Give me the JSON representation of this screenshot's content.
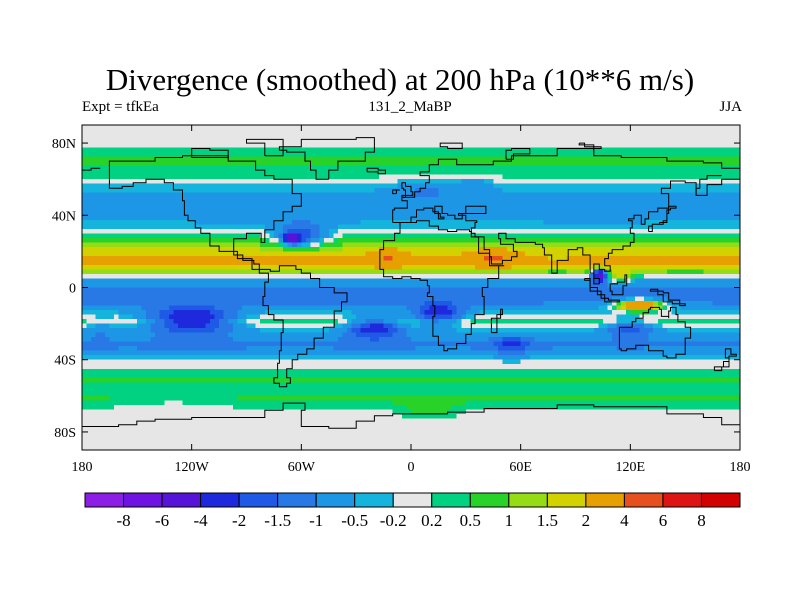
{
  "title": "Divergence (smoothed) at 200 hPa (10**6 m/s)",
  "subtitle_left": "Expt = tfkEa",
  "subtitle_center": "131_2_MaBP",
  "subtitle_right": "JJA",
  "chart_data": {
    "type": "heatmap",
    "projection": "cylindrical-equidistant",
    "x_range": [
      -180,
      180
    ],
    "y_range": [
      -90,
      90
    ],
    "x_ticks": [
      {
        "value": -180,
        "label": "180"
      },
      {
        "value": -120,
        "label": "120W"
      },
      {
        "value": -60,
        "label": "60W"
      },
      {
        "value": 0,
        "label": "0"
      },
      {
        "value": 60,
        "label": "60E"
      },
      {
        "value": 120,
        "label": "120E"
      },
      {
        "value": 180,
        "label": "180"
      }
    ],
    "y_ticks": [
      {
        "value": 80,
        "label": "80N"
      },
      {
        "value": 40,
        "label": "40N"
      },
      {
        "value": 0,
        "label": "0"
      },
      {
        "value": -40,
        "label": "40S"
      },
      {
        "value": -80,
        "label": "80S"
      }
    ],
    "levels": [
      -8,
      -6,
      -4,
      -2,
      -1.5,
      -1,
      -0.5,
      -0.2,
      0.2,
      0.5,
      1,
      1.5,
      2,
      4,
      6,
      8
    ],
    "level_labels": [
      "-8",
      "-6",
      "-4",
      "-2",
      "-1.5",
      "-1",
      "-0.5",
      "-0.2",
      "0.2",
      "0.5",
      "1",
      "1.5",
      "2",
      "4",
      "6",
      "8"
    ],
    "colors": [
      "#8c1ee6",
      "#6e14e0",
      "#5514d8",
      "#1e28dc",
      "#1e5ae6",
      "#2878e6",
      "#1e96e6",
      "#14b4dc",
      "#e6e6e6",
      "#00d282",
      "#28d228",
      "#96dc14",
      "#d2d200",
      "#e6a000",
      "#e6501e",
      "#dc1414",
      "#d20000"
    ],
    "zonal_profile": [
      {
        "lat": 90,
        "value": 0
      },
      {
        "lat": 80,
        "value": 0.1
      },
      {
        "lat": 70,
        "value": 0.6
      },
      {
        "lat": 62,
        "value": 0.3
      },
      {
        "lat": 52,
        "value": -0.6
      },
      {
        "lat": 42,
        "value": -0.9
      },
      {
        "lat": 35,
        "value": -0.4
      },
      {
        "lat": 28,
        "value": 0.6
      },
      {
        "lat": 20,
        "value": 1.8
      },
      {
        "lat": 13,
        "value": 2.5
      },
      {
        "lat": 8,
        "value": 0.8
      },
      {
        "lat": 4,
        "value": -0.6
      },
      {
        "lat": -2,
        "value": -1.4
      },
      {
        "lat": -8,
        "value": -1.1
      },
      {
        "lat": -14,
        "value": -0.3
      },
      {
        "lat": -19,
        "value": 0.5
      },
      {
        "lat": -24,
        "value": -0.4
      },
      {
        "lat": -32,
        "value": -1.2
      },
      {
        "lat": -38,
        "value": -0.5
      },
      {
        "lat": -44,
        "value": 0.1
      },
      {
        "lat": -50,
        "value": 0.6
      },
      {
        "lat": -56,
        "value": 0.4
      },
      {
        "lat": -62,
        "value": 0.6
      },
      {
        "lat": -68,
        "value": 0.1
      },
      {
        "lat": -75,
        "value": 0
      },
      {
        "lat": -90,
        "value": 0
      }
    ],
    "features": [
      {
        "lon": -60,
        "lat": 28,
        "value": -1.6,
        "rlon": 16,
        "rlat": 7
      },
      {
        "lon": -65,
        "lat": 27,
        "value": -4.5,
        "rlon": 4,
        "rlat": 2.5
      },
      {
        "lon": -105,
        "lat": 40,
        "value": -0.8,
        "rlon": 12,
        "rlat": 10
      },
      {
        "lon": 8,
        "lat": 55,
        "value": -1.0,
        "rlon": 18,
        "rlat": 6
      },
      {
        "lon": 35,
        "lat": 57,
        "value": -0.8,
        "rlon": 10,
        "rlat": 5
      },
      {
        "lon": 100,
        "lat": 38,
        "value": -0.8,
        "rlon": 16,
        "rlat": 7
      },
      {
        "lon": -12,
        "lat": 17,
        "value": 4.2,
        "rlon": 7,
        "rlat": 4
      },
      {
        "lon": 45,
        "lat": 17,
        "value": 4.5,
        "rlon": 9,
        "rlat": 4
      },
      {
        "lon": 80,
        "lat": 14,
        "value": 2.0,
        "rlon": 8,
        "rlat": 4
      },
      {
        "lon": 103,
        "lat": 7,
        "value": -4.5,
        "rlon": 4,
        "rlat": 3
      },
      {
        "lon": 115,
        "lat": 6,
        "value": 2.0,
        "rlon": 6,
        "rlat": 3
      },
      {
        "lon": 125,
        "lat": -10,
        "value": 4.2,
        "rlon": 12,
        "rlat": 3
      },
      {
        "lon": 150,
        "lat": 14,
        "value": 2.2,
        "rlon": 25,
        "rlat": 5
      },
      {
        "lon": -120,
        "lat": -18,
        "value": -2.5,
        "rlon": 25,
        "rlat": 7
      },
      {
        "lon": -20,
        "lat": -22,
        "value": -2.3,
        "rlon": 15,
        "rlat": 6
      },
      {
        "lon": 15,
        "lat": -15,
        "value": -2.3,
        "rlon": 14,
        "rlat": 6
      },
      {
        "lon": 55,
        "lat": -32,
        "value": -2.3,
        "rlon": 10,
        "rlat": 5
      },
      {
        "lon": 120,
        "lat": -22,
        "value": -1.5,
        "rlon": 14,
        "rlat": 5
      },
      {
        "lon": -170,
        "lat": -22,
        "value": -0.7,
        "rlon": 8,
        "rlat": 6
      },
      {
        "lon": 10,
        "lat": -68,
        "value": 0.8,
        "rlon": 15,
        "rlat": 4
      },
      {
        "lon": -130,
        "lat": -62,
        "value": 0.3,
        "rlon": 30,
        "rlat": 5
      }
    ]
  }
}
